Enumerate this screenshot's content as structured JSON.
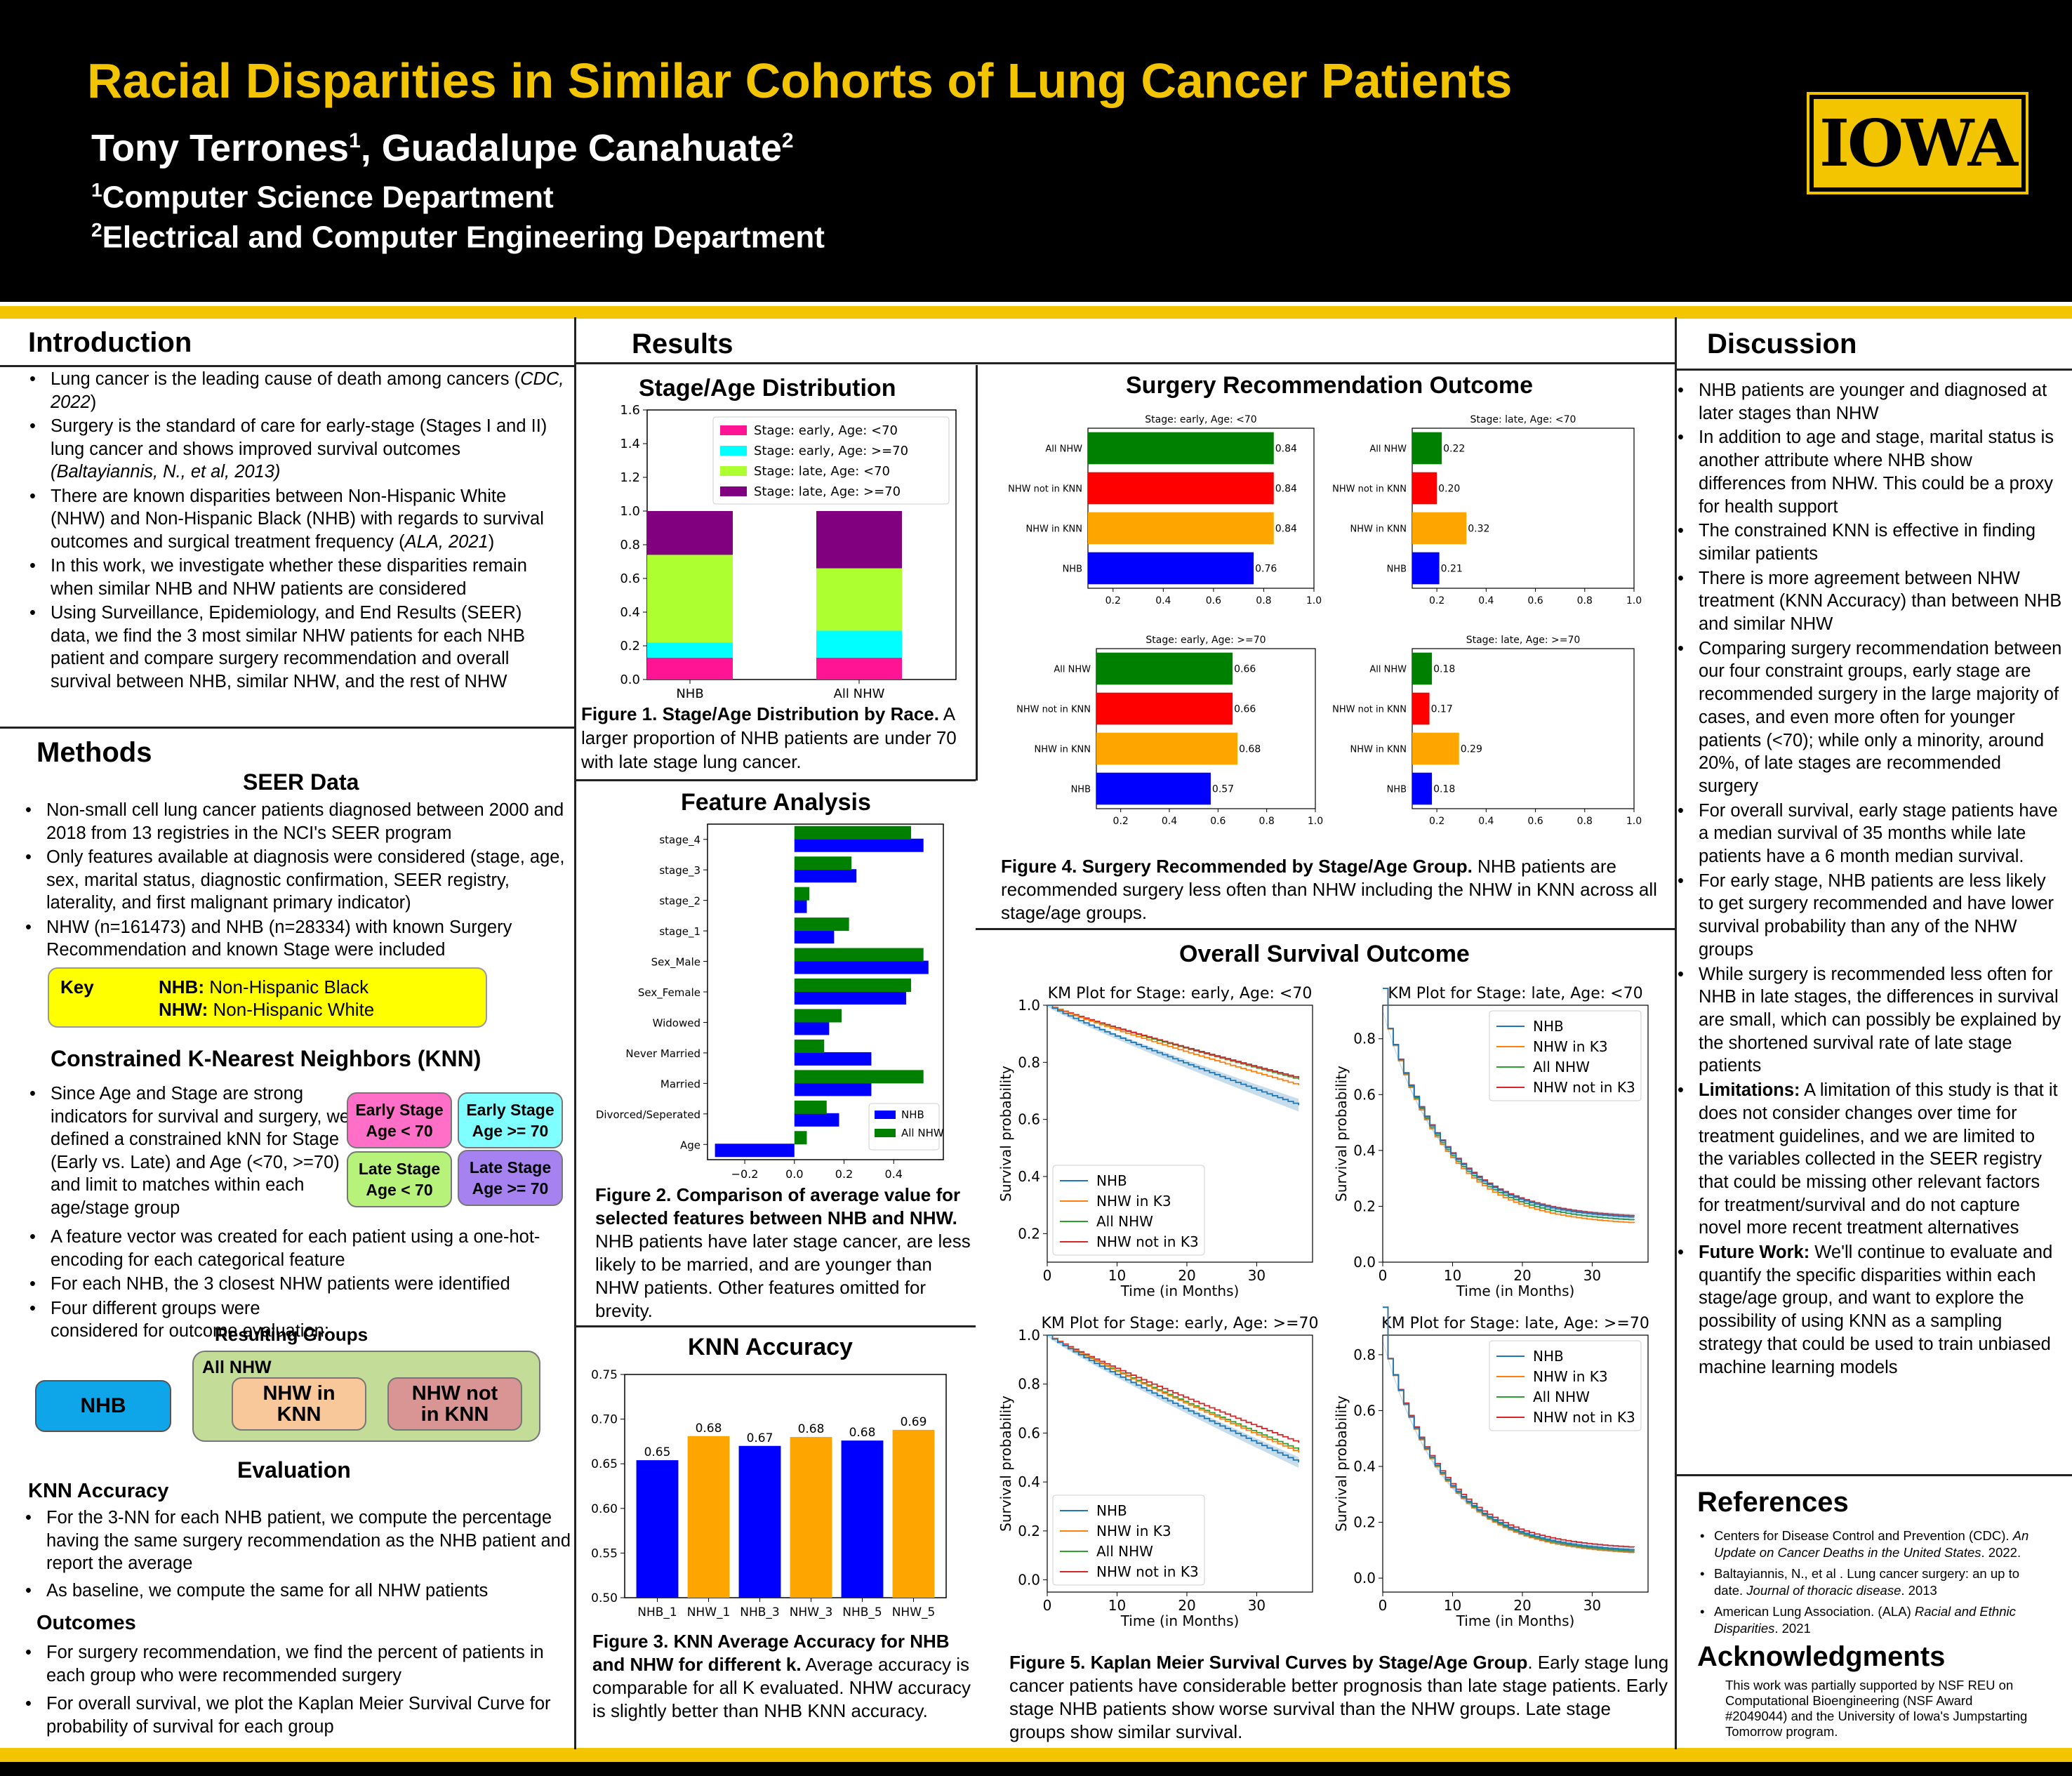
{
  "header": {
    "title": "Racial Disparities in Similar Cohorts of Lung Cancer Patients",
    "authors": {
      "a1": "Tony Terrones",
      "a1_sup": "1",
      "sep": ", ",
      "a2": "Guadalupe Canahuate",
      "a2_sup": "2"
    },
    "aff1": {
      "sup": "1",
      "text": "Computer Science Department"
    },
    "aff2": {
      "sup": "2",
      "text": "Electrical and Computer Engineering Department"
    },
    "logo": "IOWA"
  },
  "intro": {
    "heading": "Introduction",
    "b1": "Lung cancer is the leading cause of death among cancers (",
    "b1_cite": "CDC, 2022",
    "b1_end": ")",
    "b2": "Surgery is the standard of care for early-stage (Stages I and II) lung cancer and shows improved survival outcomes ",
    "b2_cite": "(Baltayiannis, N., et al, 2013)",
    "b3": "There are known disparities between Non-Hispanic White (NHW) and Non-Hispanic Black (NHB) with regards to survival outcomes and surgical treatment frequency (",
    "b3_cite": "ALA, 2021",
    "b3_end": ")",
    "b4": "In this work, we investigate whether these disparities remain when similar NHB and NHW patients are considered",
    "b5": "Using Surveillance, Epidemiology, and End Results (SEER) data, we find the 3 most similar NHW patients for each NHB patient and compare surgery recommendation and overall survival between NHB, similar NHW, and the rest of NHW"
  },
  "methods": {
    "heading": "Methods",
    "seer_heading": "SEER Data",
    "s1": "Non-small cell lung cancer patients diagnosed between 2000 and 2018 from 13 registries in the NCI's SEER program",
    "s2": "Only features available at diagnosis were considered (stage, age, sex, marital status, diagnostic confirmation, SEER registry, laterality, and first malignant primary indicator)",
    "s3": "NHW (n=161473) and NHB (n=28334) with known Surgery Recommendation and known Stage were included",
    "key": {
      "label": "Key",
      "nhb_abbr": "NHB:",
      "nhb": " Non-Hispanic Black",
      "nhw_abbr": "NHW:",
      "nhw": " Non-Hispanic White"
    },
    "knn_heading": "Constrained K-Nearest Neighbors (KNN)",
    "k1": "Since Age and Stage are strong indicators for survival and surgery, we defined a constrained kNN for Stage (Early vs. Late) and Age (<70, >=70) and limit to matches within each age/stage group",
    "groups": {
      "g1a": "Early Stage",
      "g1b": "Age < 70",
      "g2a": "Early Stage",
      "g2b": "Age >= 70",
      "g3a": "Late Stage",
      "g3b": "Age < 70",
      "g4a": "Late Stage",
      "g4b": "Age >= 70"
    },
    "k2": "A feature vector was created for each patient using a one-hot-encoding for each categorical feature",
    "k3": "For each NHB, the 3 closest NHW patients were identified",
    "k4": "Four different groups were considered for outcome evaluation:",
    "resulting_groups": "Resulting Groups",
    "rg": {
      "nhb": "NHB",
      "all_nhw": "All NHW",
      "in_knn": "NHW in KNN",
      "not_in_knn": "NHW not in KNN"
    },
    "eval_heading": "Evaluation",
    "knn_acc_heading": "KNN Accuracy",
    "e1": "For the 3-NN for each NHB patient, we compute the percentage having the same surgery recommendation as the NHB patient and report the average",
    "e2": "As baseline, we compute the same for all NHW patients",
    "outcomes_heading": "Outcomes",
    "o1": "For surgery recommendation, we find the percent of patients in each group who were recommended surgery",
    "o2": "For overall survival, we plot the Kaplan Meier Survival Curve for probability of survival for each group"
  },
  "results": {
    "heading": "Results",
    "fig1": {
      "title": "Stage/Age Distribution",
      "cap_b": "Figure 1. Stage/Age Distribution by Race.",
      "cap": " A larger proportion of NHB patients are under 70 with late stage lung cancer."
    },
    "fig2": {
      "title": "Feature Analysis",
      "cap_b": "Figure 2. Comparison of average value for selected features between NHB and NHW.",
      "cap": " NHB patients have later stage cancer, are less likely to be married, and are younger than NHW patients. Other features omitted for brevity."
    },
    "fig3": {
      "title": "KNN Accuracy",
      "cap_b": "Figure 3. KNN Average Accuracy for NHB and NHW for different k.",
      "cap": " Average accuracy is comparable for all K evaluated. NHW accuracy is slightly better than NHB KNN accuracy."
    },
    "fig4": {
      "title": "Surgery Recommendation Outcome",
      "cap_b": "Figure 4. Surgery Recommended by Stage/Age Group.",
      "cap": " NHB patients are recommended surgery less often than NHW including the NHW in KNN across all stage/age groups."
    },
    "fig5": {
      "title": "Overall Survival Outcome",
      "cap_b": "Figure 5. Kaplan Meier Survival Curves by Stage/Age Group",
      "cap": ". Early stage lung cancer patients have considerable better prognosis than late stage patients. Early stage NHB patients show worse survival than the NHW groups. Late stage groups show similar survival."
    }
  },
  "discussion": {
    "heading": "Discussion",
    "d1": "NHB patients are younger and diagnosed at later stages than NHW",
    "d2": "In addition to age and stage, marital status is another attribute where NHB show differences from NHW. This could be a proxy for health support",
    "d3": "The constrained KNN is effective in finding similar patients",
    "d4": "There is more agreement between NHW treatment (KNN Accuracy) than between NHB and similar NHW",
    "d5": "Comparing surgery recommendation between our four constraint groups, early stage are recommended surgery in the large majority of cases, and even more often for younger patients (<70); while only a minority, around 20%, of late stages are recommended surgery",
    "d6": "For overall survival, early stage patients have a median survival of 35 months while late patients have a 6 month median survival.",
    "d7": "For early stage, NHB patients are less likely to get surgery recommended and have lower survival probability than any of the NHW groups",
    "d8": "While surgery is recommended less often for NHB in late stages, the differences in survival are small, which can possibly be explained by the shortened survival rate of late stage patients",
    "d9_b": "Limitations:",
    "d9": " A limitation of this study is that it does not consider changes over time for treatment guidelines, and we are limited to the variables collected in the SEER registry that could be missing other relevant factors for treatment/survival and do not capture novel more recent treatment alternatives",
    "d10_b": "Future Work:",
    "d10": " We'll continue to evaluate and quantify the specific disparities within each stage/age group, and want to explore the possibility of using KNN as a sampling strategy that could be used to train unbiased machine learning models"
  },
  "references": {
    "heading": "References",
    "r1a": "Centers for Disease Control and Prevention (CDC). ",
    "r1i": "An Update on Cancer Deaths in the United States",
    "r1b": ". 2022.",
    "r2a": "Baltayiannis, N., et al . Lung cancer surgery: an up to date. ",
    "r2i": "Journal of thoracic disease",
    "r2b": ". 2013",
    "r3a": "American Lung Association. (ALA) ",
    "r3i": "Racial and Ethnic Disparities",
    "r3b": ". 2021"
  },
  "ack": {
    "heading": "Acknowledgments",
    "text": "This work was partially supported by NSF REU on Computational Bioengineering (NSF Award #2049044) and the University of Iowa's Jumpstarting Tomorrow program."
  },
  "colors": {
    "gold": "#f2c500",
    "nhb": "#0000ff",
    "nhw": "#008000",
    "not_in_knn": "#ff0000",
    "in_knn": "#ffa500"
  },
  "chart_data": [
    {
      "id": "fig1",
      "type": "bar",
      "stacked": true,
      "categories": [
        "NHB",
        "All NHW"
      ],
      "series": [
        {
          "name": "Stage: early, Age: <70",
          "color": "#ff1493",
          "values": [
            0.13,
            0.13
          ]
        },
        {
          "name": "Stage: early, Age: >=70",
          "color": "#00ffff",
          "values": [
            0.09,
            0.16
          ]
        },
        {
          "name": "Stage: late, Age: <70",
          "color": "#adff2f",
          "values": [
            0.52,
            0.37
          ]
        },
        {
          "name": "Stage: late, Age: >=70",
          "color": "#800080",
          "values": [
            0.26,
            0.34
          ]
        }
      ],
      "ylim": [
        0,
        1.6
      ],
      "yticks": [
        "0.0",
        "0.2",
        "0.4",
        "0.6",
        "0.8",
        "1.0",
        "1.2",
        "1.4",
        "1.6"
      ],
      "legend": "top-right"
    },
    {
      "id": "fig2",
      "type": "bar",
      "orientation": "horizontal",
      "categories": [
        "stage_4",
        "stage_3",
        "stage_2",
        "stage_1",
        "Sex_Male",
        "Sex_Female",
        "Widowed",
        "Never Married",
        "Married",
        "Divorced/Seperated",
        "Age"
      ],
      "series": [
        {
          "name": "NHB",
          "color": "#0000ff",
          "values": [
            0.52,
            0.25,
            0.05,
            0.16,
            0.54,
            0.45,
            0.14,
            0.31,
            0.31,
            0.18,
            -0.32
          ]
        },
        {
          "name": "All NHW",
          "color": "#008000",
          "values": [
            0.47,
            0.23,
            0.06,
            0.22,
            0.52,
            0.47,
            0.19,
            0.12,
            0.52,
            0.13,
            0.05
          ]
        }
      ],
      "xlim": [
        -0.35,
        0.6
      ],
      "xticks": [
        "−0.2",
        "0.0",
        "0.2",
        "0.4"
      ],
      "xtick_values": [
        -0.2,
        0,
        0.2,
        0.4
      ],
      "legend": "bottom-right"
    },
    {
      "id": "fig3",
      "type": "bar",
      "categories": [
        "NHB_1",
        "NHW_1",
        "NHB_3",
        "NHW_3",
        "NHB_5",
        "NHW_5"
      ],
      "values": [
        0.654,
        0.681,
        0.67,
        0.68,
        0.676,
        0.688
      ],
      "labels": [
        "0.65",
        "0.68",
        "0.67",
        "0.68",
        "0.68",
        "0.69"
      ],
      "colors": [
        "#0000ff",
        "#ffa500",
        "#0000ff",
        "#ffa500",
        "#0000ff",
        "#ffa500"
      ],
      "ylim": [
        0.5,
        0.75
      ],
      "yticks": [
        "0.50",
        "0.55",
        "0.60",
        "0.65",
        "0.70",
        "0.75"
      ]
    },
    {
      "id": "fig4",
      "type": "bar",
      "orientation": "horizontal",
      "categories": [
        "All NHW",
        "NHW not in KNN",
        "NHW in KNN",
        "NHB"
      ],
      "colors": [
        "#008000",
        "#ff0000",
        "#ffa500",
        "#0000ff"
      ],
      "xlim": [
        0.1,
        1.0
      ],
      "xticks": [
        "0.2",
        "0.4",
        "0.6",
        "0.8",
        "1.0"
      ],
      "panels": [
        {
          "title": "Stage: early, Age: <70",
          "values": [
            0.84,
            0.84,
            0.84,
            0.76
          ],
          "labels": [
            "0.84",
            "0.84",
            "0.84",
            "0.76"
          ]
        },
        {
          "title": "Stage: late, Age: <70",
          "values": [
            0.22,
            0.2,
            0.32,
            0.21
          ],
          "labels": [
            "0.22",
            "0.20",
            "0.32",
            "0.21"
          ]
        },
        {
          "title": "Stage: early, Age: >=70",
          "values": [
            0.66,
            0.66,
            0.68,
            0.57
          ],
          "labels": [
            "0.66",
            "0.66",
            "0.68",
            "0.57"
          ]
        },
        {
          "title": "Stage: late, Age: >=70",
          "values": [
            0.18,
            0.17,
            0.29,
            0.18
          ],
          "labels": [
            "0.18",
            "0.17",
            "0.29",
            "0.18"
          ]
        }
      ]
    },
    {
      "id": "fig5",
      "type": "line",
      "xlabel": "Time (in Months)",
      "ylabel": "Survival probability",
      "series_names": [
        "NHB",
        "NHW in K3",
        "All NHW",
        "NHW not in K3"
      ],
      "series_colors": [
        "#1f77b4",
        "#ff7f0e",
        "#2ca02c",
        "#d62728"
      ],
      "panels": [
        {
          "title": "KM Plot for Stage: early, Age: <70",
          "ylim": [
            0.1,
            1.0
          ],
          "yticks": [
            "0.2",
            "0.4",
            "0.6",
            "0.8",
            "1.0"
          ],
          "ytick_values": [
            0.2,
            0.4,
            0.6,
            0.8,
            1.0
          ],
          "end": [
            0.65,
            0.72,
            0.74,
            0.745
          ],
          "shape": "early",
          "legend": "bottom-left"
        },
        {
          "title": "KM Plot for Stage: late, Age: <70",
          "ylim": [
            0.0,
            0.92
          ],
          "yticks": [
            "0.0",
            "0.2",
            "0.4",
            "0.6",
            "0.8"
          ],
          "ytick_values": [
            0,
            0.2,
            0.4,
            0.6,
            0.8
          ],
          "start": 0.9,
          "end": [
            0.15,
            0.13,
            0.14,
            0.155
          ],
          "shape": "late",
          "legend": "top-right"
        },
        {
          "title": "KM Plot for Stage: early, Age: >=70",
          "ylim": [
            -0.05,
            1.0
          ],
          "yticks": [
            "0.0",
            "0.2",
            "0.4",
            "0.6",
            "0.8",
            "1.0"
          ],
          "ytick_values": [
            0,
            0.2,
            0.4,
            0.6,
            0.8,
            1.0
          ],
          "end": [
            0.48,
            0.52,
            0.53,
            0.56
          ],
          "shape": "early",
          "legend": "bottom-left"
        },
        {
          "title": "KM Plot for Stage: late, Age: >=70",
          "ylim": [
            -0.05,
            0.87
          ],
          "yticks": [
            "0.0",
            "0.2",
            "0.4",
            "0.6",
            "0.8"
          ],
          "ytick_values": [
            0,
            0.2,
            0.4,
            0.6,
            0.8
          ],
          "start": 0.85,
          "end": [
            0.09,
            0.08,
            0.085,
            0.1
          ],
          "shape": "late",
          "legend": "top-right"
        }
      ],
      "xlim": [
        0,
        38
      ],
      "xticks": [
        "0",
        "10",
        "20",
        "30"
      ],
      "xtick_values": [
        0,
        10,
        20,
        30
      ]
    }
  ]
}
